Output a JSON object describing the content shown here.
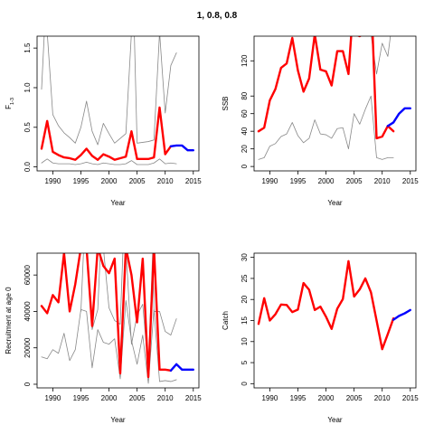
{
  "title": "1, 0.8, 0.8",
  "colors": {
    "observed": "#ff0000",
    "projection": "#0000ff",
    "envelope": "#888888",
    "axis": "#000000"
  },
  "chart_data": [
    {
      "type": "line",
      "xlabel": "Year",
      "ylabel": "F",
      "ylabel_sub": "1-3",
      "xlim": [
        1987.2,
        2016
      ],
      "ylim": [
        -0.05,
        1.65
      ],
      "xticks": [
        1990,
        1995,
        2000,
        2005,
        2010,
        2015
      ],
      "yticks": [
        0.0,
        0.5,
        1.0,
        1.5
      ],
      "ytick_labels": [
        "0.0",
        "0.5",
        "1.0",
        "1.5"
      ],
      "series": [
        {
          "role": "upper",
          "x": [
            1988,
            1988.5,
            1989,
            1990,
            1991,
            1992,
            1993,
            1994,
            1995,
            1996,
            1997,
            1998,
            1999,
            2000,
            2001,
            2002,
            2003,
            2004,
            2004.5,
            2005,
            2006,
            2007,
            2008,
            2009,
            2010,
            2011,
            2012
          ],
          "values": [
            0.98,
            1.7,
            1.7,
            0.66,
            0.52,
            0.43,
            0.37,
            0.3,
            0.5,
            0.83,
            0.45,
            0.28,
            0.55,
            0.42,
            0.3,
            0.36,
            0.42,
            1.7,
            1.7,
            0.3,
            0.31,
            0.32,
            0.34,
            1.7,
            0.68,
            1.28,
            1.44
          ]
        },
        {
          "role": "lower",
          "x": [
            1988,
            1989,
            1990,
            1991,
            1992,
            1993,
            1994,
            1995,
            1996,
            1997,
            1998,
            1999,
            2000,
            2001,
            2002,
            2003,
            2004,
            2005,
            2006,
            2007,
            2008,
            2009,
            2010,
            2011,
            2012
          ],
          "values": [
            0.05,
            0.1,
            0.05,
            0.04,
            0.04,
            0.04,
            0.03,
            0.04,
            0.06,
            0.04,
            0.03,
            0.05,
            0.04,
            0.03,
            0.03,
            0.04,
            0.08,
            0.03,
            0.03,
            0.03,
            0.05,
            0.1,
            0.04,
            0.05,
            0.04
          ]
        },
        {
          "role": "observed",
          "x": [
            1988,
            1989,
            1990,
            1991,
            1992,
            1993,
            1994,
            1995,
            1996,
            1997,
            1998,
            1999,
            2000,
            2001,
            2002,
            2003,
            2004,
            2005,
            2006,
            2007,
            2008,
            2009,
            2010,
            2011
          ],
          "values": [
            0.23,
            0.58,
            0.19,
            0.15,
            0.12,
            0.11,
            0.09,
            0.15,
            0.23,
            0.14,
            0.09,
            0.16,
            0.13,
            0.09,
            0.11,
            0.13,
            0.45,
            0.1,
            0.1,
            0.1,
            0.12,
            0.75,
            0.16,
            0.26
          ]
        },
        {
          "role": "projection",
          "x": [
            2011,
            2012,
            2013,
            2014,
            2015
          ],
          "values": [
            0.26,
            0.27,
            0.27,
            0.21,
            0.21
          ]
        }
      ]
    },
    {
      "type": "line",
      "xlabel": "Year",
      "ylabel": "SSB",
      "xlim": [
        1987.2,
        2016
      ],
      "ylim": [
        -5,
        148
      ],
      "xticks": [
        1990,
        1995,
        2000,
        2005,
        2010,
        2015
      ],
      "yticks": [
        0,
        20,
        40,
        60,
        80,
        120
      ],
      "ytick_labels": [
        "0",
        "20",
        "40",
        "60",
        "80",
        "120"
      ],
      "series": [
        {
          "role": "upper",
          "x": [
            2008,
            2009,
            2010,
            2011,
            2011.5
          ],
          "values": [
            150,
            105,
            140,
            125,
            150
          ]
        },
        {
          "role": "lower",
          "x": [
            1988,
            1989,
            1990,
            1991,
            1992,
            1993,
            1994,
            1995,
            1996,
            1997,
            1998,
            1999,
            2000,
            2001,
            2002,
            2003,
            2004,
            2005,
            2006,
            2007,
            2008,
            2009,
            2010,
            2011,
            2012
          ],
          "values": [
            8,
            10,
            23,
            26,
            34,
            37,
            50,
            35,
            27,
            32,
            53,
            37,
            36,
            32,
            43,
            44,
            20,
            60,
            48,
            65,
            80,
            10,
            8,
            10,
            10
          ]
        },
        {
          "role": "observed",
          "x": [
            1988,
            1989,
            1990,
            1991,
            1992,
            1993,
            1994,
            1995,
            1996,
            1997,
            1998,
            1999,
            2000,
            2001,
            2002,
            2003,
            2004,
            2004.5,
            2005.2,
            2006,
            2006.5,
            2007.5,
            2008.3,
            2009,
            2010,
            2011,
            2012
          ],
          "values": [
            40,
            44,
            75,
            88,
            112,
            117,
            146,
            109,
            85,
            100,
            150,
            110,
            108,
            92,
            131,
            131,
            105,
            150,
            150,
            148,
            150,
            150,
            150,
            32,
            34,
            46,
            40
          ]
        },
        {
          "role": "projection",
          "x": [
            2011,
            2012,
            2013,
            2014,
            2015
          ],
          "values": [
            46,
            50,
            60,
            66,
            66
          ]
        }
      ]
    },
    {
      "type": "line",
      "xlabel": "Year",
      "ylabel": "Recruitment at age 0",
      "xlim": [
        1987.2,
        2016
      ],
      "ylim": [
        -2000,
        72000
      ],
      "xticks": [
        1990,
        1995,
        2000,
        2005,
        2010,
        2015
      ],
      "yticks": [
        0,
        20000,
        40000,
        60000
      ],
      "ytick_labels": [
        "0",
        "20000",
        "40000",
        "60000"
      ],
      "series": [
        {
          "role": "upper",
          "x": [
            1995,
            1995.5,
            1996,
            1997,
            1998,
            1998.5,
            1999,
            2000,
            2001,
            2002,
            2002.5,
            2003,
            2004,
            2005,
            2006,
            2007,
            2007.8,
            2008,
            2009,
            2010,
            2011,
            2012
          ],
          "values": [
            40000,
            75000,
            75000,
            30000,
            41000,
            75000,
            75000,
            42000,
            35000,
            33000,
            75000,
            75000,
            22000,
            38000,
            44000,
            8000,
            75000,
            40000,
            40000,
            29000,
            27000,
            36000
          ]
        },
        {
          "role": "lower",
          "x": [
            1988,
            1989,
            1990,
            1991,
            1992,
            1993,
            1994,
            1995,
            1996,
            1997,
            1998,
            1999,
            2000,
            2001,
            2002,
            2003,
            2004,
            2005,
            2006,
            2007,
            2008,
            2009,
            2010,
            2011,
            2012
          ],
          "values": [
            15000,
            14000,
            19000,
            17000,
            28000,
            13000,
            19000,
            41000,
            40000,
            9000,
            30000,
            23000,
            22000,
            25000,
            3000,
            46000,
            24000,
            11000,
            27000,
            500,
            41000,
            1500,
            2000,
            1500,
            2500
          ]
        },
        {
          "role": "observed",
          "x": [
            1988,
            1989,
            1990,
            1991,
            1992,
            1993,
            1994,
            1995,
            1996,
            1997,
            1998,
            1999,
            2000,
            2001,
            2002,
            2003,
            2004,
            2005,
            2006,
            2007,
            2008,
            2009,
            2010,
            2011
          ],
          "values": [
            43000,
            39000,
            49000,
            45000,
            72000,
            40000,
            55000,
            75000,
            75000,
            32000,
            75000,
            65000,
            61000,
            69000,
            6000,
            75000,
            60000,
            34000,
            69000,
            4000,
            75000,
            8000,
            8000,
            7500
          ]
        },
        {
          "role": "projection",
          "x": [
            2011,
            2012,
            2013,
            2014,
            2015
          ],
          "values": [
            7500,
            11000,
            8000,
            8000,
            8000
          ]
        }
      ]
    },
    {
      "type": "line",
      "xlabel": "Year",
      "ylabel": "Catch",
      "xlim": [
        1987.2,
        2016
      ],
      "ylim": [
        -1,
        31
      ],
      "xticks": [
        1990,
        1995,
        2000,
        2005,
        2010,
        2015
      ],
      "yticks": [
        0,
        5,
        10,
        15,
        20,
        25,
        30
      ],
      "ytick_labels": [
        "0",
        "5",
        "10",
        "15",
        "20",
        "25",
        "30"
      ],
      "series": [
        {
          "role": "observed",
          "x": [
            1988,
            1989,
            1990,
            1991,
            1992,
            1993,
            1994,
            1995,
            1996,
            1997,
            1998,
            1999,
            2000,
            2001,
            2002,
            2003,
            2004,
            2005,
            2006,
            2007,
            2008,
            2009,
            2010,
            2011,
            2012
          ],
          "values": [
            14.2,
            20.3,
            15.0,
            16.5,
            18.8,
            18.7,
            17.0,
            17.6,
            23.9,
            22.3,
            17.5,
            18.3,
            15.9,
            13.0,
            17.8,
            20.1,
            29.1,
            20.7,
            22.4,
            25.0,
            21.7,
            15.0,
            8.2,
            11.8,
            15.5
          ]
        },
        {
          "role": "projection",
          "x": [
            2012,
            2013,
            2014,
            2015
          ],
          "values": [
            15.2,
            16.1,
            16.7,
            17.5
          ]
        }
      ]
    }
  ]
}
